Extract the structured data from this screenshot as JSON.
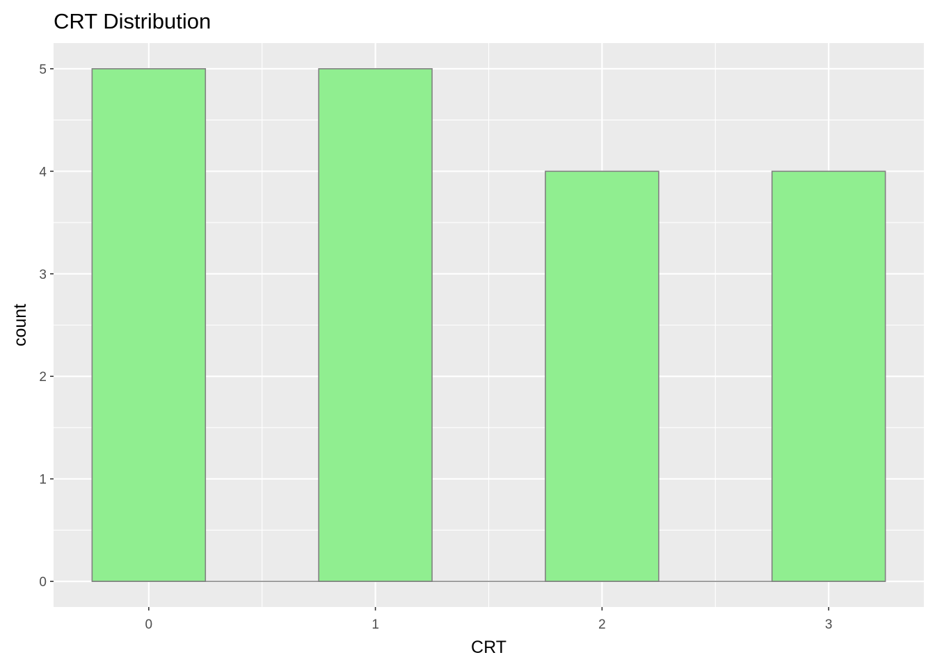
{
  "chart_data": {
    "type": "bar",
    "title": "CRT Distribution",
    "xlabel": "CRT",
    "ylabel": "count",
    "categories": [
      "0",
      "1",
      "2",
      "3"
    ],
    "x": [
      0,
      1,
      2,
      3
    ],
    "values": [
      5,
      5,
      4,
      4
    ],
    "xlim": [
      -0.42,
      3.42
    ],
    "ylim": [
      -0.25,
      5.25
    ],
    "x_ticks": [
      0,
      1,
      2,
      3
    ],
    "x_tick_labels": [
      "0",
      "1",
      "2",
      "3"
    ],
    "y_ticks": [
      0,
      1,
      2,
      3,
      4,
      5
    ],
    "y_tick_labels": [
      "0",
      "1",
      "2",
      "3",
      "4",
      "5"
    ],
    "bar_width": 0.5,
    "grid": true,
    "legend": "none",
    "colors": {
      "bar_fill": "#90EE90",
      "bar_stroke": "#808080",
      "panel_background": "#EBEBEB",
      "grid": "#FFFFFF",
      "tick_label": "#4D4D4D",
      "tick_mark": "#333333",
      "text": "#000000"
    }
  }
}
